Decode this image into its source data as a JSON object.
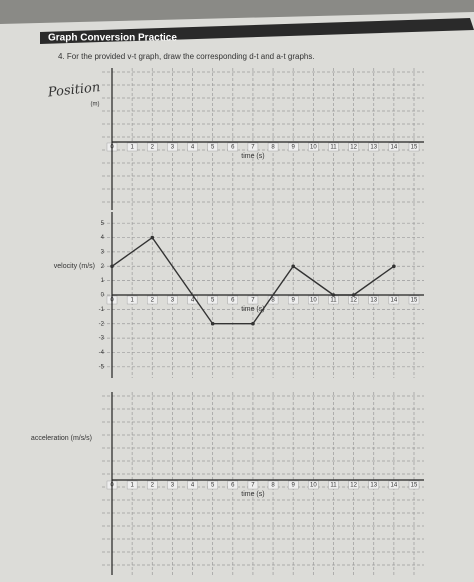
{
  "header": {
    "title": "Graph Conversion Practice"
  },
  "question": "4.  For the provided v-t graph, draw the corresponding d-t and a-t graphs.",
  "chart_data": [
    {
      "type": "line",
      "handwritten_label": "Position",
      "y_label": "(m)",
      "x_label": "time (s)",
      "xlim": [
        0,
        15
      ],
      "xticks": [
        0,
        1,
        2,
        3,
        4,
        5,
        6,
        7,
        8,
        9,
        10,
        11,
        12,
        13,
        14,
        15
      ]
    },
    {
      "type": "line",
      "y_label": "velocity (m/s)",
      "x_label": "time (s)",
      "xlim": [
        0,
        15
      ],
      "xticks": [
        0,
        1,
        2,
        3,
        4,
        5,
        6,
        7,
        8,
        9,
        10,
        11,
        12,
        13,
        14,
        15
      ],
      "ylim": [
        -5.5,
        5.5
      ],
      "yticks": [
        5,
        4,
        3,
        2,
        1,
        0,
        -1,
        -2,
        -3,
        -4,
        -5
      ],
      "x": [
        0,
        2,
        5,
        7,
        9,
        11,
        12,
        14
      ],
      "values": [
        2,
        4,
        -2,
        -2,
        2,
        0,
        0,
        2
      ],
      "color": "#333333"
    },
    {
      "type": "line",
      "y_label": "acceleration (m/s/s)",
      "x_label": "time (s)",
      "xlim": [
        0,
        15
      ],
      "xticks": [
        0,
        1,
        2,
        3,
        4,
        5,
        6,
        7,
        8,
        9,
        10,
        11,
        12,
        13,
        14,
        15
      ]
    }
  ]
}
